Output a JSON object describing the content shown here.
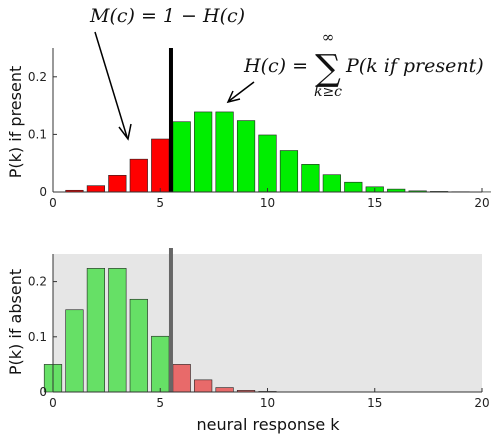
{
  "chart_data": [
    {
      "type": "bar",
      "ylabel": "P(k) if present",
      "xlabel": "",
      "xlim": [
        0,
        20
      ],
      "ylim": [
        0,
        0.25
      ],
      "xticks": [
        "0",
        "5",
        "10",
        "15",
        "20"
      ],
      "yticks": [
        "0",
        "0.1",
        "0.2"
      ],
      "threshold_c": 5.5,
      "background": "#ffffff",
      "colors": {
        "below_threshold": "#ff0000",
        "above_threshold": "#00ee00",
        "threshold_line": "#000000"
      },
      "x": [
        1,
        2,
        3,
        4,
        5,
        6,
        7,
        8,
        9,
        10,
        11,
        12,
        13,
        14,
        15,
        16,
        17,
        18,
        19,
        20
      ],
      "values": [
        0.003,
        0.011,
        0.029,
        0.057,
        0.092,
        0.122,
        0.139,
        0.139,
        0.124,
        0.099,
        0.072,
        0.048,
        0.03,
        0.017,
        0.009,
        0.005,
        0.002,
        0.001,
        0.0005,
        0.0002
      ],
      "annotations": [
        {
          "text_left": "M(c) = 1 − H(c)"
        },
        {
          "text_left": "H(c) =",
          "sum_top": "∞",
          "sum_symbol": "∑",
          "sum_bottom": "k≥c",
          "text_right": "P(k if present)"
        }
      ]
    },
    {
      "type": "bar",
      "ylabel": "P(k) if absent",
      "xlabel": "neural response k",
      "xlim": [
        0,
        20
      ],
      "ylim": [
        0,
        0.25
      ],
      "xticks": [
        "0",
        "5",
        "10",
        "15",
        "20"
      ],
      "yticks": [
        "0",
        "0.1",
        "0.2"
      ],
      "threshold_c": 5.5,
      "background": "#e6e6e6",
      "colors": {
        "below_threshold": "#66e066",
        "above_threshold": "#e86a6a",
        "threshold_line": "#666666"
      },
      "x": [
        0,
        1,
        2,
        3,
        4,
        5,
        6,
        7,
        8,
        9,
        10,
        11,
        12
      ],
      "values": [
        0.05,
        0.149,
        0.224,
        0.224,
        0.168,
        0.101,
        0.05,
        0.022,
        0.008,
        0.003,
        0.001,
        0.0003,
        0.0001
      ]
    }
  ]
}
